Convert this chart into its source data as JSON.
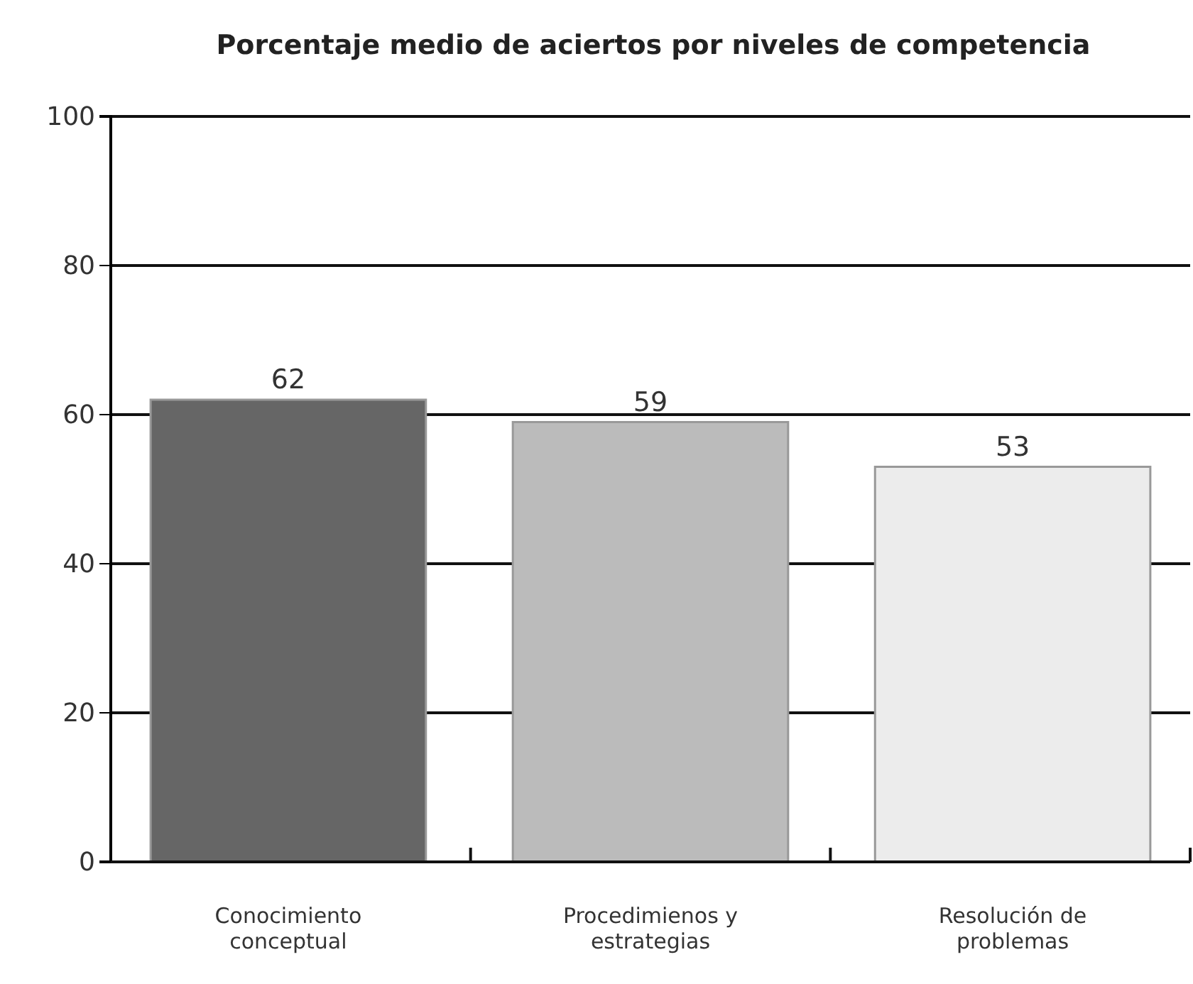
{
  "chart_data": {
    "type": "bar",
    "title": "Porcentaje  medio de aciertos por niveles de competencia",
    "categories": [
      "Conocimiento conceptual",
      "Procedimienos y estrategias",
      "Resolución de problemas"
    ],
    "values": [
      62,
      59,
      53
    ],
    "colors": [
      "#666666",
      "#bbbbbb",
      "#ececec"
    ],
    "ylim": [
      0,
      100
    ],
    "yticks": [
      0,
      20,
      40,
      60,
      80,
      100
    ],
    "grid": "y",
    "data_labels": true
  }
}
